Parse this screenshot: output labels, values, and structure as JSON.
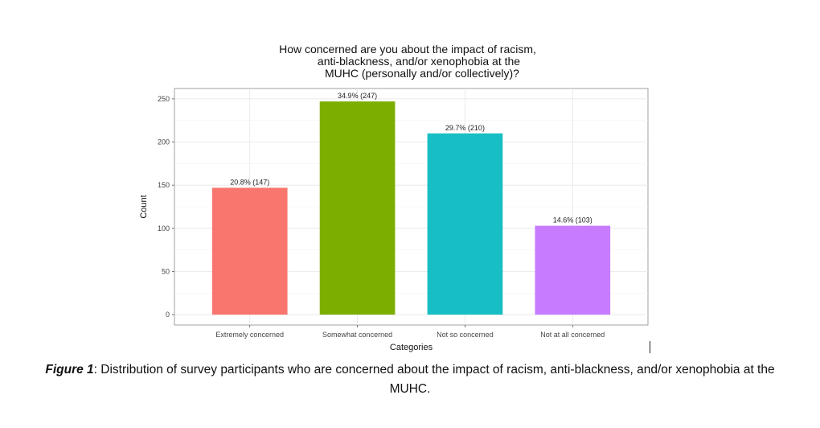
{
  "chart_data": {
    "type": "bar",
    "title_lines": [
      "How concerned are you about the impact of racism,",
      "anti-blackness, and/or xenophobia at the",
      "MUHC (personally and/or collectively)?"
    ],
    "xlabel": "Categories",
    "ylabel": "Count",
    "categories": [
      "Extremely concerned",
      "Somewhat concerned",
      "Not so concerned",
      "Not at all concerned"
    ],
    "values": [
      147,
      247,
      210,
      103
    ],
    "data_labels": [
      "20.8% (147)",
      "34.9% (247)",
      "29.7% (210)",
      "14.6% (103)"
    ],
    "colors": [
      "#F8766D",
      "#7CAE00",
      "#17BFC4",
      "#C77CFF"
    ],
    "y_ticks": [
      0,
      50,
      100,
      150,
      200,
      250
    ],
    "ylim": [
      -12,
      262
    ],
    "grid": true,
    "legend": "none"
  },
  "caption": {
    "figure_label": "Figure 1",
    "text": ": Distribution of survey participants who are concerned about the impact of racism, anti-blackness, and/or xenophobia at the MUHC."
  }
}
